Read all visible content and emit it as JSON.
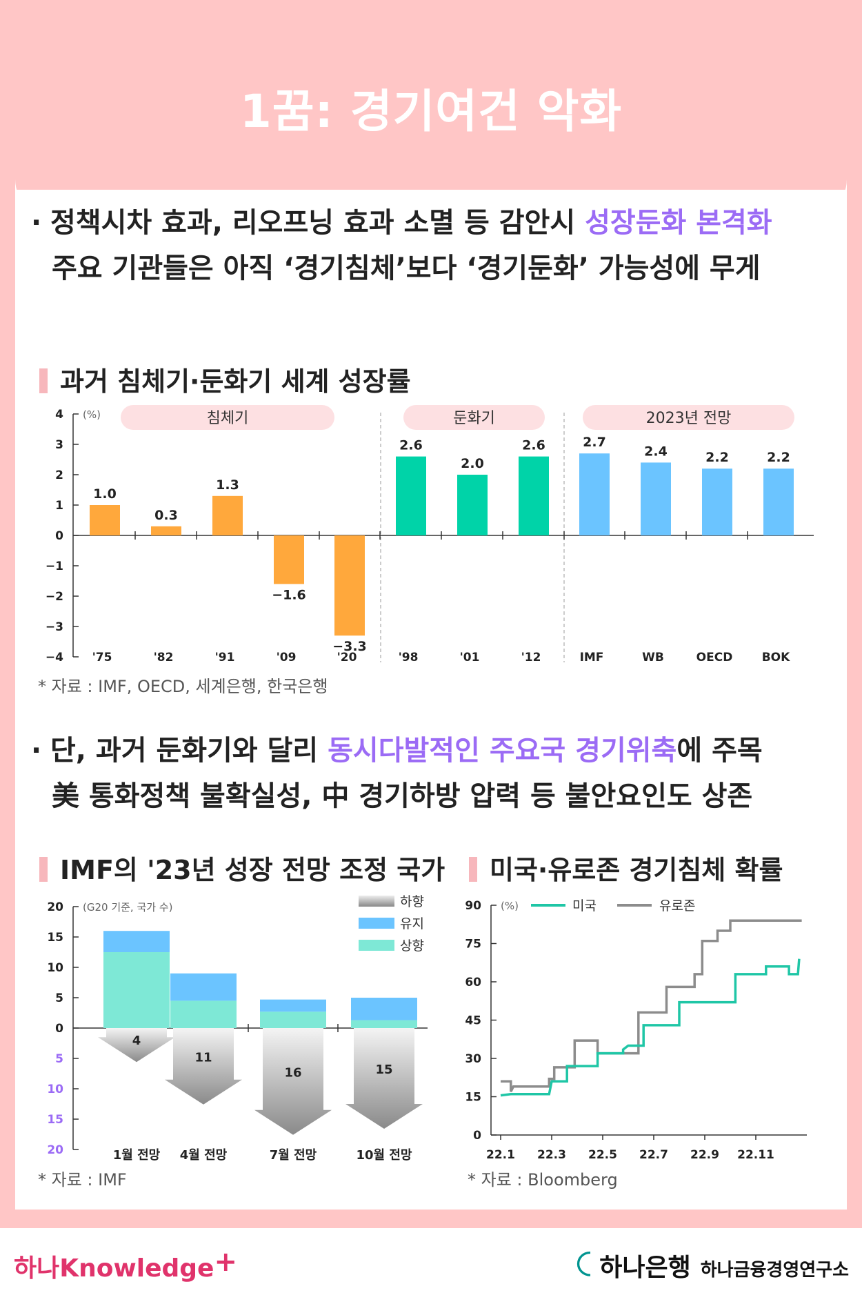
{
  "header": {
    "title": "1꿈: 경기여건 악화"
  },
  "bullets": [
    {
      "pre": "정책시차 효과, 리오프닝 효과 소멸 등 감안시 ",
      "hl": "성장둔화 본격화",
      "post": "",
      "line2": "주요 기관들은 아직 ‘경기침체’보다 ‘경기둔화’ 가능성에 무게"
    },
    {
      "pre": "단, 과거 둔화기와 달리 ",
      "hl": "동시다발적인 주요국 경기위축",
      "post": "에 주목",
      "line2": "美 통화정책 불확실성, 中 경기하방 압력 등 불안요인도 상존"
    }
  ],
  "chart1_title": "과거 침체기·둔화기 세계 성장률",
  "chart2_title": "IMF의 '23년 성장 전망 조정 국가",
  "chart3_title": "미국·유로존 경기침체 확률",
  "sources": [
    "* 자료 : IMF, OECD, 세계은행, 한국은행",
    "* 자료 : IMF",
    "* 자료 : Bloomberg"
  ],
  "colors": {
    "header_bg": "#ffc6c6",
    "accent": "#9b6bf5",
    "recession": "#ffa83c",
    "slowdown": "#00d3a8",
    "forecast": "#6bc4ff",
    "us_line": "#1fc6a6",
    "euro_line": "#8c8c8c"
  },
  "chart_data": [
    {
      "type": "bar",
      "unit": "(%)",
      "groups": [
        {
          "label": "침체기"
        },
        {
          "label": "둔화기"
        },
        {
          "label": "2023년 전망"
        }
      ],
      "categories": [
        "'75",
        "'82",
        "'91",
        "'09",
        "'20",
        "'98",
        "'01",
        "'12",
        "IMF",
        "WB",
        "OECD",
        "BOK"
      ],
      "values": [
        1.0,
        0.3,
        1.3,
        -1.6,
        -3.3,
        2.6,
        2.0,
        2.6,
        2.7,
        2.4,
        2.2,
        2.2
      ],
      "value_labels": [
        "1.0",
        "0.3",
        "1.3",
        "−1.6",
        "−3.3",
        "2.6",
        "2.0",
        "2.6",
        "2.7",
        "2.4",
        "2.2",
        "2.2"
      ],
      "bar_groups": [
        0,
        0,
        0,
        0,
        0,
        1,
        1,
        1,
        2,
        2,
        2,
        2
      ],
      "yticks": [
        "4",
        "3",
        "2",
        "1",
        "0",
        "−1",
        "−2",
        "−3",
        "−4"
      ],
      "ylim": [
        -4,
        4
      ]
    },
    {
      "type": "bar",
      "subtitle": "(G20 기준, 국가 수)",
      "categories": [
        "1월 전망",
        "4월 전망",
        "7월 전망",
        "10월 전망"
      ],
      "series": [
        {
          "name": "상향",
          "values": [
            12.5,
            4.5,
            2.7,
            1.3
          ]
        },
        {
          "name": "유지",
          "values": [
            3.5,
            4.5,
            2.0,
            3.7
          ]
        },
        {
          "name": "하향",
          "values": [
            4,
            11,
            16,
            15
          ]
        }
      ],
      "down_labels": [
        "4",
        "11",
        "16",
        "15"
      ],
      "yticks_top": [
        "20",
        "15",
        "10",
        "5",
        "0"
      ],
      "yticks_bottom": [
        "5",
        "10",
        "15",
        "20"
      ],
      "ylim": [
        -20,
        20
      ]
    },
    {
      "type": "line",
      "unit": "(%)",
      "x_ticks": [
        "22.1",
        "22.3",
        "22.5",
        "22.7",
        "22.9",
        "22.11"
      ],
      "yticks": [
        "90",
        "75",
        "60",
        "45",
        "30",
        "15",
        "0"
      ],
      "ylim": [
        0,
        90
      ],
      "xlim": [
        0,
        12
      ],
      "series": [
        {
          "name": "미국",
          "points": [
            [
              0,
              15.5
            ],
            [
              0.4,
              16
            ],
            [
              1.9,
              16
            ],
            [
              2.0,
              21
            ],
            [
              2.6,
              21
            ],
            [
              2.6,
              27
            ],
            [
              3.8,
              27
            ],
            [
              3.8,
              32
            ],
            [
              4.8,
              32
            ],
            [
              4.8,
              33.5
            ],
            [
              5.0,
              35
            ],
            [
              5.6,
              35
            ],
            [
              5.6,
              43
            ],
            [
              7.0,
              43
            ],
            [
              7.0,
              52
            ],
            [
              9.2,
              52
            ],
            [
              9.2,
              63
            ],
            [
              10.4,
              63
            ],
            [
              10.4,
              66
            ],
            [
              11.3,
              66
            ],
            [
              11.3,
              63
            ],
            [
              11.65,
              63
            ],
            [
              11.7,
              69
            ]
          ]
        },
        {
          "name": "유로존",
          "points": [
            [
              0,
              21
            ],
            [
              0.4,
              21
            ],
            [
              0.4,
              17
            ],
            [
              0.5,
              19
            ],
            [
              1.9,
              19
            ],
            [
              1.9,
              22
            ],
            [
              2.1,
              22
            ],
            [
              2.1,
              26.5
            ],
            [
              2.9,
              26.5
            ],
            [
              2.9,
              37
            ],
            [
              3.8,
              37
            ],
            [
              3.8,
              32
            ],
            [
              5.4,
              32
            ],
            [
              5.4,
              48
            ],
            [
              6.5,
              48
            ],
            [
              6.5,
              58
            ],
            [
              7.6,
              58
            ],
            [
              7.6,
              63
            ],
            [
              7.9,
              63
            ],
            [
              7.9,
              76
            ],
            [
              8.5,
              76
            ],
            [
              8.5,
              80
            ],
            [
              9.0,
              80
            ],
            [
              9.0,
              84
            ],
            [
              11.8,
              84
            ]
          ]
        }
      ]
    }
  ],
  "footer": {
    "left_logo": "하나Knowledge",
    "left_plus": "+",
    "bank": "하나은행",
    "institute": "하나금융경영연구소",
    "mark": "ꉔ"
  }
}
